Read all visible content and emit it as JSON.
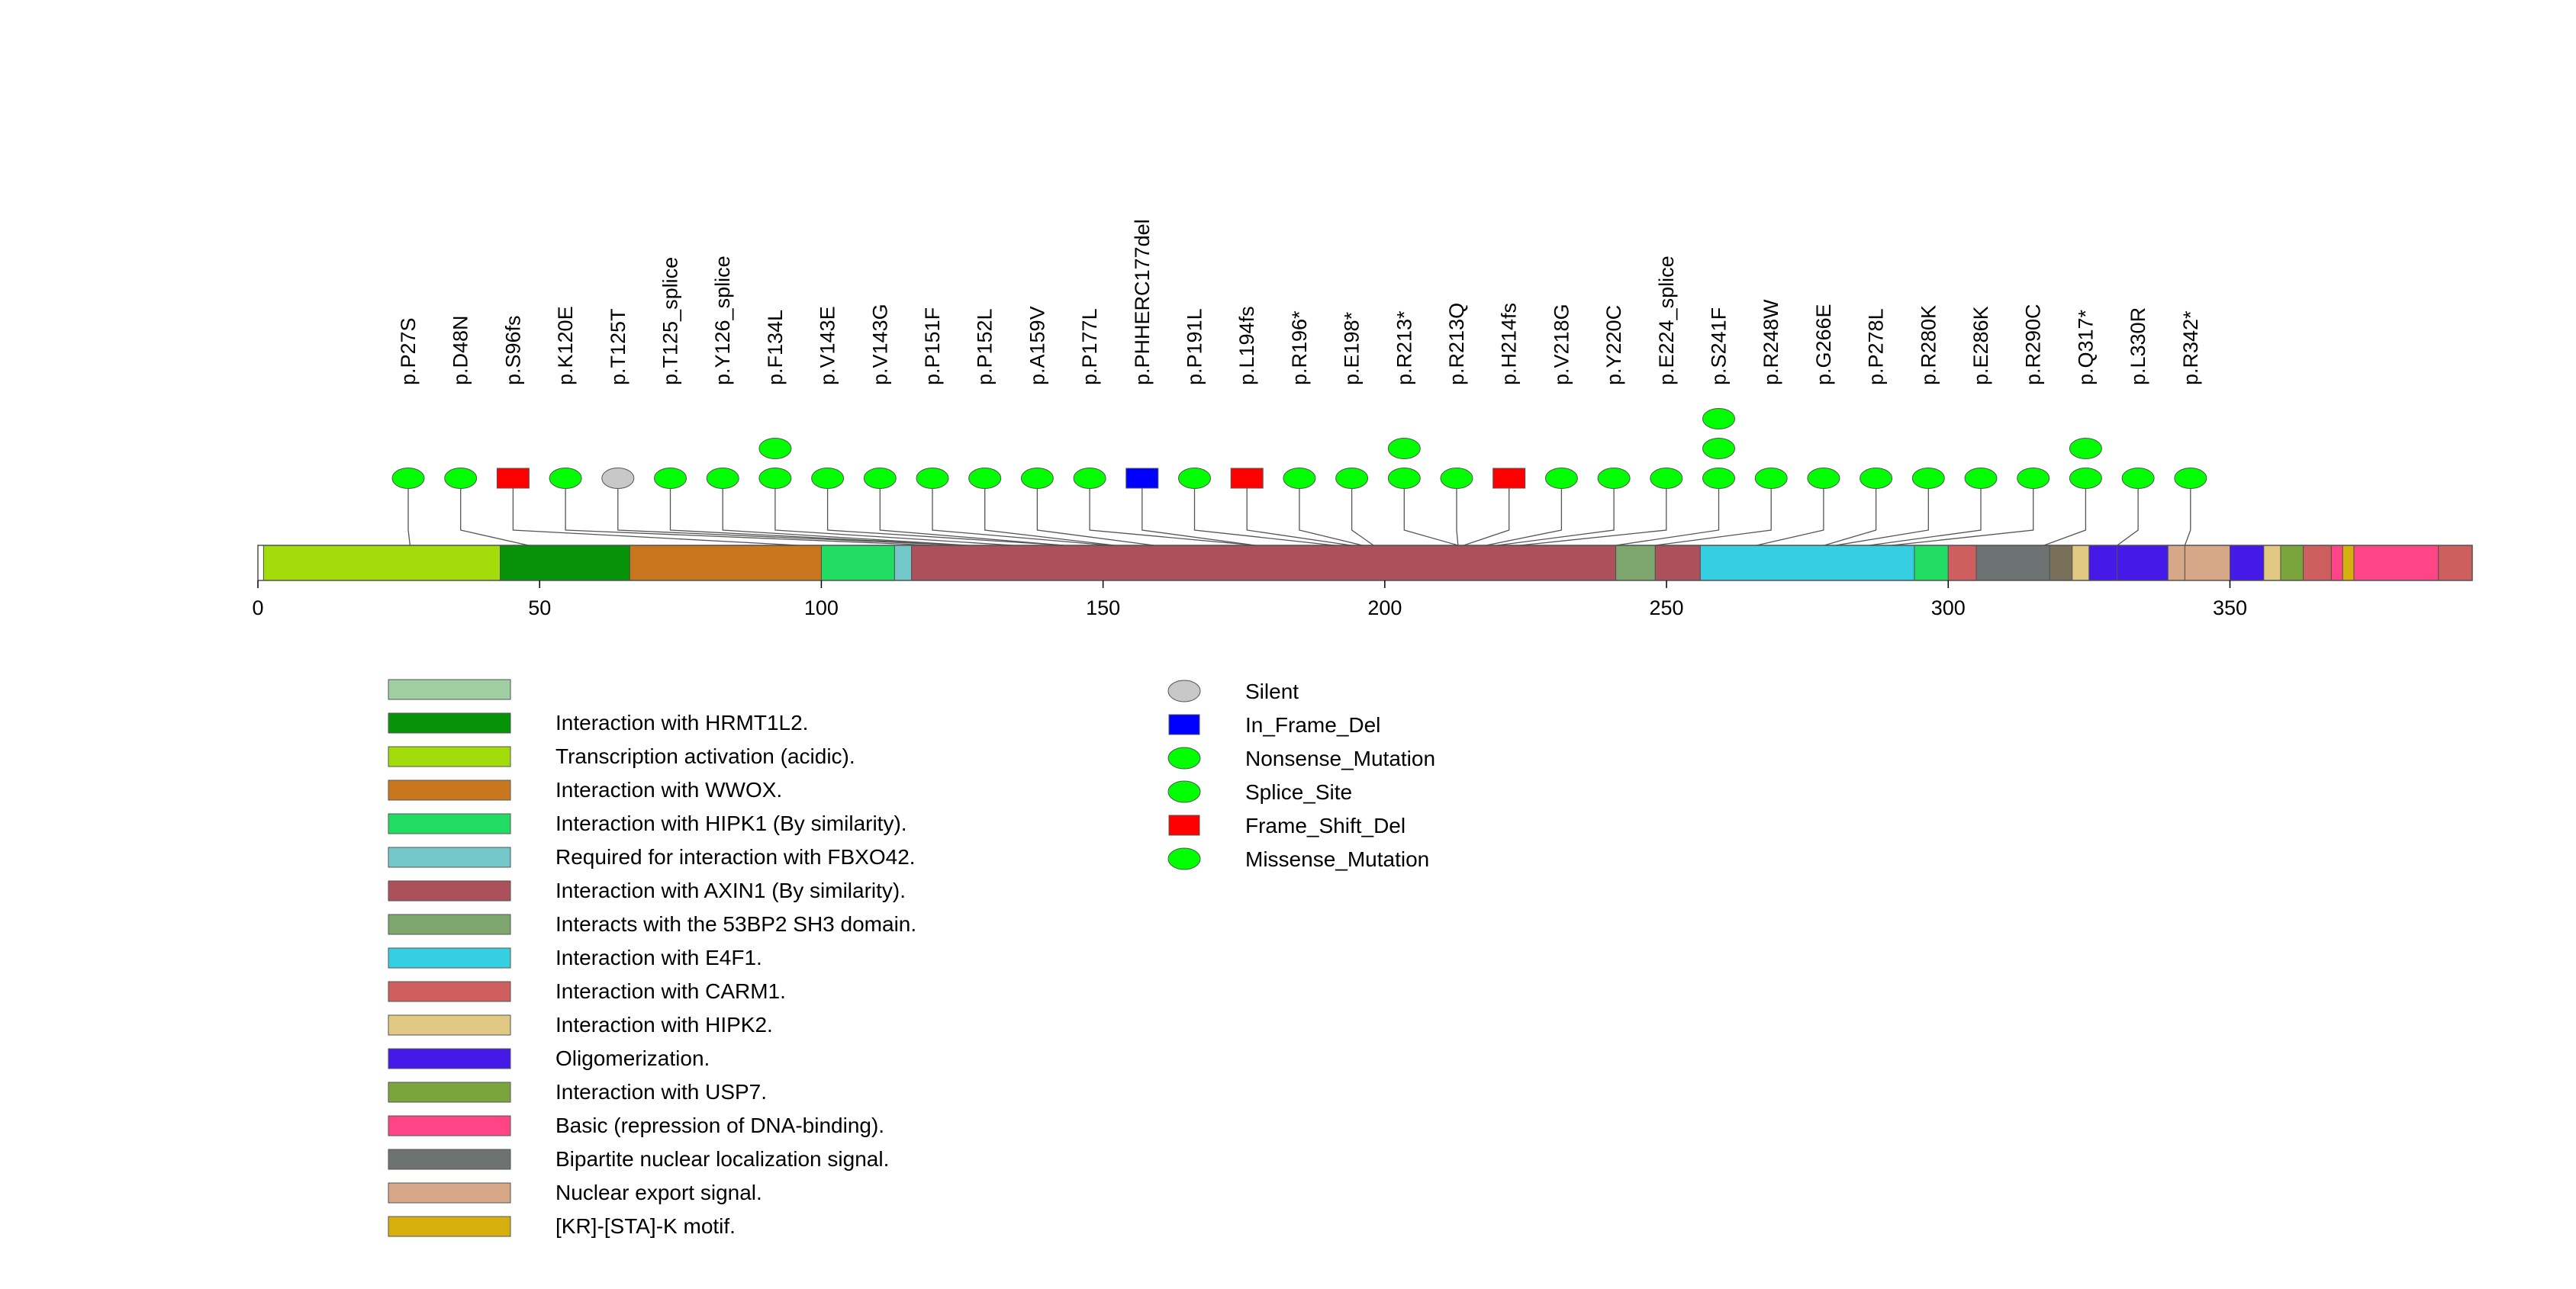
{
  "chart_data": {
    "type": "lollipop",
    "axis": {
      "min": 0,
      "max": 393,
      "ticks": [
        0,
        50,
        100,
        150,
        200,
        250,
        300,
        350
      ]
    },
    "domains": [
      {
        "start": 1,
        "end": 43,
        "color": "#A2DC0A"
      },
      {
        "start": 43,
        "end": 66,
        "color": "#079307"
      },
      {
        "start": 66,
        "end": 100,
        "color": "#C8771E"
      },
      {
        "start": 100,
        "end": 113,
        "color": "#22DC63"
      },
      {
        "start": 113,
        "end": 116,
        "color": "#74C8CA"
      },
      {
        "start": 116,
        "end": 241,
        "color": "#AC505C"
      },
      {
        "start": 241,
        "end": 248,
        "color": "#7DA66E"
      },
      {
        "start": 248,
        "end": 256,
        "color": "#AC505C"
      },
      {
        "start": 256,
        "end": 294,
        "color": "#36CFE1"
      },
      {
        "start": 294,
        "end": 300,
        "color": "#22DC63"
      },
      {
        "start": 300,
        "end": 305,
        "color": "#CF5E5E"
      },
      {
        "start": 305,
        "end": 318,
        "color": "#6D7373"
      },
      {
        "start": 318,
        "end": 322,
        "color": "#79705A"
      },
      {
        "start": 322,
        "end": 325,
        "color": "#E1C883"
      },
      {
        "start": 325,
        "end": 330,
        "color": "#4519E8"
      },
      {
        "start": 330,
        "end": 339,
        "color": "#4519E8"
      },
      {
        "start": 339,
        "end": 342,
        "color": "#D6A888"
      },
      {
        "start": 342,
        "end": 350,
        "color": "#D6A888"
      },
      {
        "start": 350,
        "end": 356,
        "color": "#4519E8"
      },
      {
        "start": 356,
        "end": 359,
        "color": "#E1C883"
      },
      {
        "start": 359,
        "end": 363,
        "color": "#79A53C"
      },
      {
        "start": 363,
        "end": 368,
        "color": "#CF5E5E"
      },
      {
        "start": 368,
        "end": 370,
        "color": "#FF4585"
      },
      {
        "start": 370,
        "end": 372,
        "color": "#D6AE0D"
      },
      {
        "start": 372,
        "end": 387,
        "color": "#FF4585"
      },
      {
        "start": 387,
        "end": 393,
        "color": "#CF5E5E"
      }
    ],
    "mutations": [
      {
        "label": "p.P27S",
        "position": 27,
        "count": 1,
        "type": "Missense_Mutation"
      },
      {
        "label": "p.D48N",
        "position": 48,
        "count": 1,
        "type": "Missense_Mutation"
      },
      {
        "label": "p.S96fs",
        "position": 96,
        "count": 1,
        "type": "Frame_Shift_Del"
      },
      {
        "label": "p.K120E",
        "position": 120,
        "count": 1,
        "type": "Missense_Mutation"
      },
      {
        "label": "p.T125T",
        "position": 125,
        "count": 1,
        "type": "Silent"
      },
      {
        "label": "p.T125_splice",
        "position": 125,
        "count": 1,
        "type": "Splice_Site"
      },
      {
        "label": "p.Y126_splice",
        "position": 126,
        "count": 1,
        "type": "Splice_Site"
      },
      {
        "label": "p.F134L",
        "position": 134,
        "count": 2,
        "type": "Missense_Mutation"
      },
      {
        "label": "p.V143E",
        "position": 143,
        "count": 1,
        "type": "Missense_Mutation"
      },
      {
        "label": "p.V143G",
        "position": 143,
        "count": 1,
        "type": "Missense_Mutation"
      },
      {
        "label": "p.P151F",
        "position": 151,
        "count": 1,
        "type": "Missense_Mutation"
      },
      {
        "label": "p.P152L",
        "position": 152,
        "count": 1,
        "type": "Missense_Mutation"
      },
      {
        "label": "p.A159V",
        "position": 159,
        "count": 1,
        "type": "Missense_Mutation"
      },
      {
        "label": "p.P177L",
        "position": 177,
        "count": 1,
        "type": "Missense_Mutation"
      },
      {
        "label": "p.PHHERC177del",
        "position": 177,
        "count": 1,
        "type": "In_Frame_Del"
      },
      {
        "label": "p.P191L",
        "position": 191,
        "count": 1,
        "type": "Missense_Mutation"
      },
      {
        "label": "p.L194fs",
        "position": 194,
        "count": 1,
        "type": "Frame_Shift_Del"
      },
      {
        "label": "p.R196*",
        "position": 196,
        "count": 1,
        "type": "Nonsense_Mutation"
      },
      {
        "label": "p.E198*",
        "position": 198,
        "count": 1,
        "type": "Nonsense_Mutation"
      },
      {
        "label": "p.R213*",
        "position": 213,
        "count": 2,
        "type": "Nonsense_Mutation"
      },
      {
        "label": "p.R213Q",
        "position": 213,
        "count": 1,
        "type": "Missense_Mutation"
      },
      {
        "label": "p.H214fs",
        "position": 214,
        "count": 1,
        "type": "Frame_Shift_Del"
      },
      {
        "label": "p.V218G",
        "position": 218,
        "count": 1,
        "type": "Missense_Mutation"
      },
      {
        "label": "p.Y220C",
        "position": 220,
        "count": 1,
        "type": "Missense_Mutation"
      },
      {
        "label": "p.E224_splice",
        "position": 224,
        "count": 1,
        "type": "Splice_Site"
      },
      {
        "label": "p.S241F",
        "position": 241,
        "count": 3,
        "type": "Missense_Mutation"
      },
      {
        "label": "p.R248W",
        "position": 248,
        "count": 1,
        "type": "Missense_Mutation"
      },
      {
        "label": "p.G266E",
        "position": 266,
        "count": 1,
        "type": "Missense_Mutation"
      },
      {
        "label": "p.P278L",
        "position": 278,
        "count": 1,
        "type": "Missense_Mutation"
      },
      {
        "label": "p.R280K",
        "position": 280,
        "count": 1,
        "type": "Missense_Mutation"
      },
      {
        "label": "p.E286K",
        "position": 286,
        "count": 1,
        "type": "Missense_Mutation"
      },
      {
        "label": "p.R290C",
        "position": 290,
        "count": 1,
        "type": "Missense_Mutation"
      },
      {
        "label": "p.Q317*",
        "position": 317,
        "count": 2,
        "type": "Nonsense_Mutation"
      },
      {
        "label": "p.L330R",
        "position": 330,
        "count": 1,
        "type": "Missense_Mutation"
      },
      {
        "label": "p.R342*",
        "position": 342,
        "count": 1,
        "type": "Nonsense_Mutation"
      }
    ],
    "domain_legend": [
      {
        "label": "",
        "color": "#A0CFA4"
      },
      {
        "label": "Interaction with HRMT1L2.",
        "color": "#079307"
      },
      {
        "label": "Transcription activation (acidic).",
        "color": "#A2DC0A"
      },
      {
        "label": "Interaction with WWOX.",
        "color": "#C8771E"
      },
      {
        "label": "Interaction with HIPK1 (By similarity).",
        "color": "#22DC63"
      },
      {
        "label": "Required for interaction with FBXO42.",
        "color": "#74C8CA"
      },
      {
        "label": "Interaction with AXIN1 (By similarity).",
        "color": "#AC505C"
      },
      {
        "label": "Interacts with the 53BP2 SH3 domain.",
        "color": "#7DA66E"
      },
      {
        "label": "Interaction with E4F1.",
        "color": "#36CFE1"
      },
      {
        "label": "Interaction with CARM1.",
        "color": "#CF5E5E"
      },
      {
        "label": "Interaction with HIPK2.",
        "color": "#E1C883"
      },
      {
        "label": "Oligomerization.",
        "color": "#4519E8"
      },
      {
        "label": "Interaction with USP7.",
        "color": "#79A53C"
      },
      {
        "label": "Basic (repression of DNA-binding).",
        "color": "#FF4585"
      },
      {
        "label": "Bipartite nuclear localization signal.",
        "color": "#6D7373"
      },
      {
        "label": "Nuclear export signal.",
        "color": "#D6A888"
      },
      {
        "label": "[KR]-[STA]-K motif.",
        "color": "#D6AE0D"
      }
    ],
    "mutation_legend": [
      {
        "label": "Silent",
        "shape": "ellipse",
        "color": "#C8C8C8"
      },
      {
        "label": "In_Frame_Del",
        "shape": "rect",
        "color": "#0000FF"
      },
      {
        "label": "Nonsense_Mutation",
        "shape": "ellipse",
        "color": "#00FF00"
      },
      {
        "label": "Splice_Site",
        "shape": "ellipse",
        "color": "#00FF00"
      },
      {
        "label": "Frame_Shift_Del",
        "shape": "rect",
        "color": "#FF0000"
      },
      {
        "label": "Missense_Mutation",
        "shape": "ellipse",
        "color": "#00FF00"
      }
    ],
    "mutation_colors": {
      "Silent": "#C8C8C8",
      "In_Frame_Del": "#0000FF",
      "Nonsense_Mutation": "#00FF00",
      "Splice_Site": "#00FF00",
      "Frame_Shift_Del": "#FF0000",
      "Missense_Mutation": "#00FF00"
    }
  }
}
